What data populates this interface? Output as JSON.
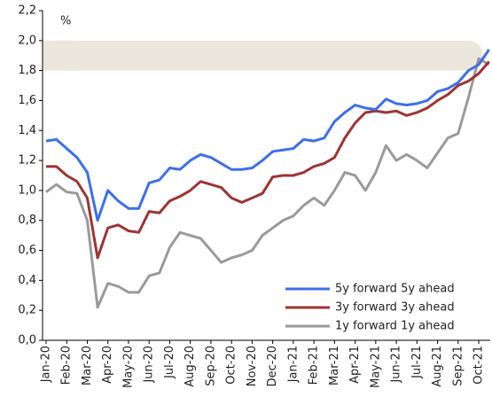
{
  "chart_data": {
    "type": "line",
    "unit_label": "%",
    "categories": [
      "Jan-20",
      null,
      "Feb-20",
      null,
      "Mar-20",
      null,
      "Apr-20",
      null,
      "May-20",
      null,
      "Jun-20",
      null,
      "Jul-20",
      null,
      "Aug-20",
      null,
      "Sep-20",
      null,
      "Oct-20",
      null,
      "Nov-20",
      null,
      "Dec-20",
      null,
      "Jan-21",
      null,
      "Feb-21",
      null,
      "Mar-21",
      null,
      "Apr-21",
      null,
      "May-21",
      null,
      "Jun-21",
      null,
      "Jul-21",
      null,
      "Aug-21",
      null,
      "Sep-21",
      null,
      "Oct-21",
      null
    ],
    "series": [
      {
        "name": "5y forward 5y ahead",
        "color": "#3d6fe8",
        "values": [
          1.33,
          1.34,
          1.28,
          1.22,
          1.12,
          0.8,
          1.0,
          0.93,
          0.88,
          0.88,
          1.05,
          1.07,
          1.15,
          1.14,
          1.2,
          1.24,
          1.22,
          1.18,
          1.14,
          1.14,
          1.15,
          1.2,
          1.26,
          1.27,
          1.28,
          1.34,
          1.33,
          1.35,
          1.46,
          1.52,
          1.57,
          1.55,
          1.54,
          1.61,
          1.58,
          1.57,
          1.58,
          1.6,
          1.66,
          1.68,
          1.72,
          1.8,
          1.84,
          1.94
        ]
      },
      {
        "name": "3y forward 3y ahead",
        "color": "#9b3534",
        "values": [
          1.16,
          1.16,
          1.1,
          1.06,
          0.95,
          0.55,
          0.75,
          0.77,
          0.73,
          0.72,
          0.86,
          0.85,
          0.93,
          0.96,
          1.0,
          1.06,
          1.04,
          1.02,
          0.95,
          0.92,
          0.95,
          0.98,
          1.09,
          1.1,
          1.1,
          1.12,
          1.16,
          1.18,
          1.22,
          1.35,
          1.45,
          1.52,
          1.53,
          1.52,
          1.53,
          1.5,
          1.52,
          1.55,
          1.6,
          1.64,
          1.7,
          1.73,
          1.78,
          1.86
        ]
      },
      {
        "name": "1y forward 1y ahead",
        "color": "#9a9a9a",
        "values": [
          0.99,
          1.04,
          0.99,
          0.98,
          0.8,
          0.22,
          0.38,
          0.36,
          0.32,
          0.32,
          0.43,
          0.45,
          0.62,
          0.72,
          0.7,
          0.68,
          0.6,
          0.52,
          0.55,
          0.57,
          0.6,
          0.7,
          0.75,
          0.8,
          0.83,
          0.9,
          0.95,
          0.9,
          1.0,
          1.12,
          1.1,
          1.0,
          1.12,
          1.3,
          1.2,
          1.24,
          1.2,
          1.15,
          1.25,
          1.35,
          1.38,
          1.62,
          1.88,
          1.84
        ]
      }
    ],
    "target_band": {
      "range": [
        1.8,
        2.0
      ],
      "color": "#ebe7dc"
    },
    "ylim": [
      0,
      2.2
    ],
    "yticks": [
      {
        "value": 0,
        "label": "0,0"
      },
      {
        "value": 0.2,
        "label": "0,2"
      },
      {
        "value": 0.4,
        "label": "0,4"
      },
      {
        "value": 0.6,
        "label": "0,6"
      },
      {
        "value": 0.8,
        "label": "0,8"
      },
      {
        "value": 1.0,
        "label": "1,0"
      },
      {
        "value": 1.2,
        "label": "1,2"
      },
      {
        "value": 1.4,
        "label": "1,4"
      },
      {
        "value": 1.6,
        "label": "1,6"
      },
      {
        "value": 1.8,
        "label": "1,8"
      },
      {
        "value": 2.0,
        "label": "2,0"
      },
      {
        "value": 2.2,
        "label": "2,2"
      }
    ],
    "legend": "lower right"
  }
}
